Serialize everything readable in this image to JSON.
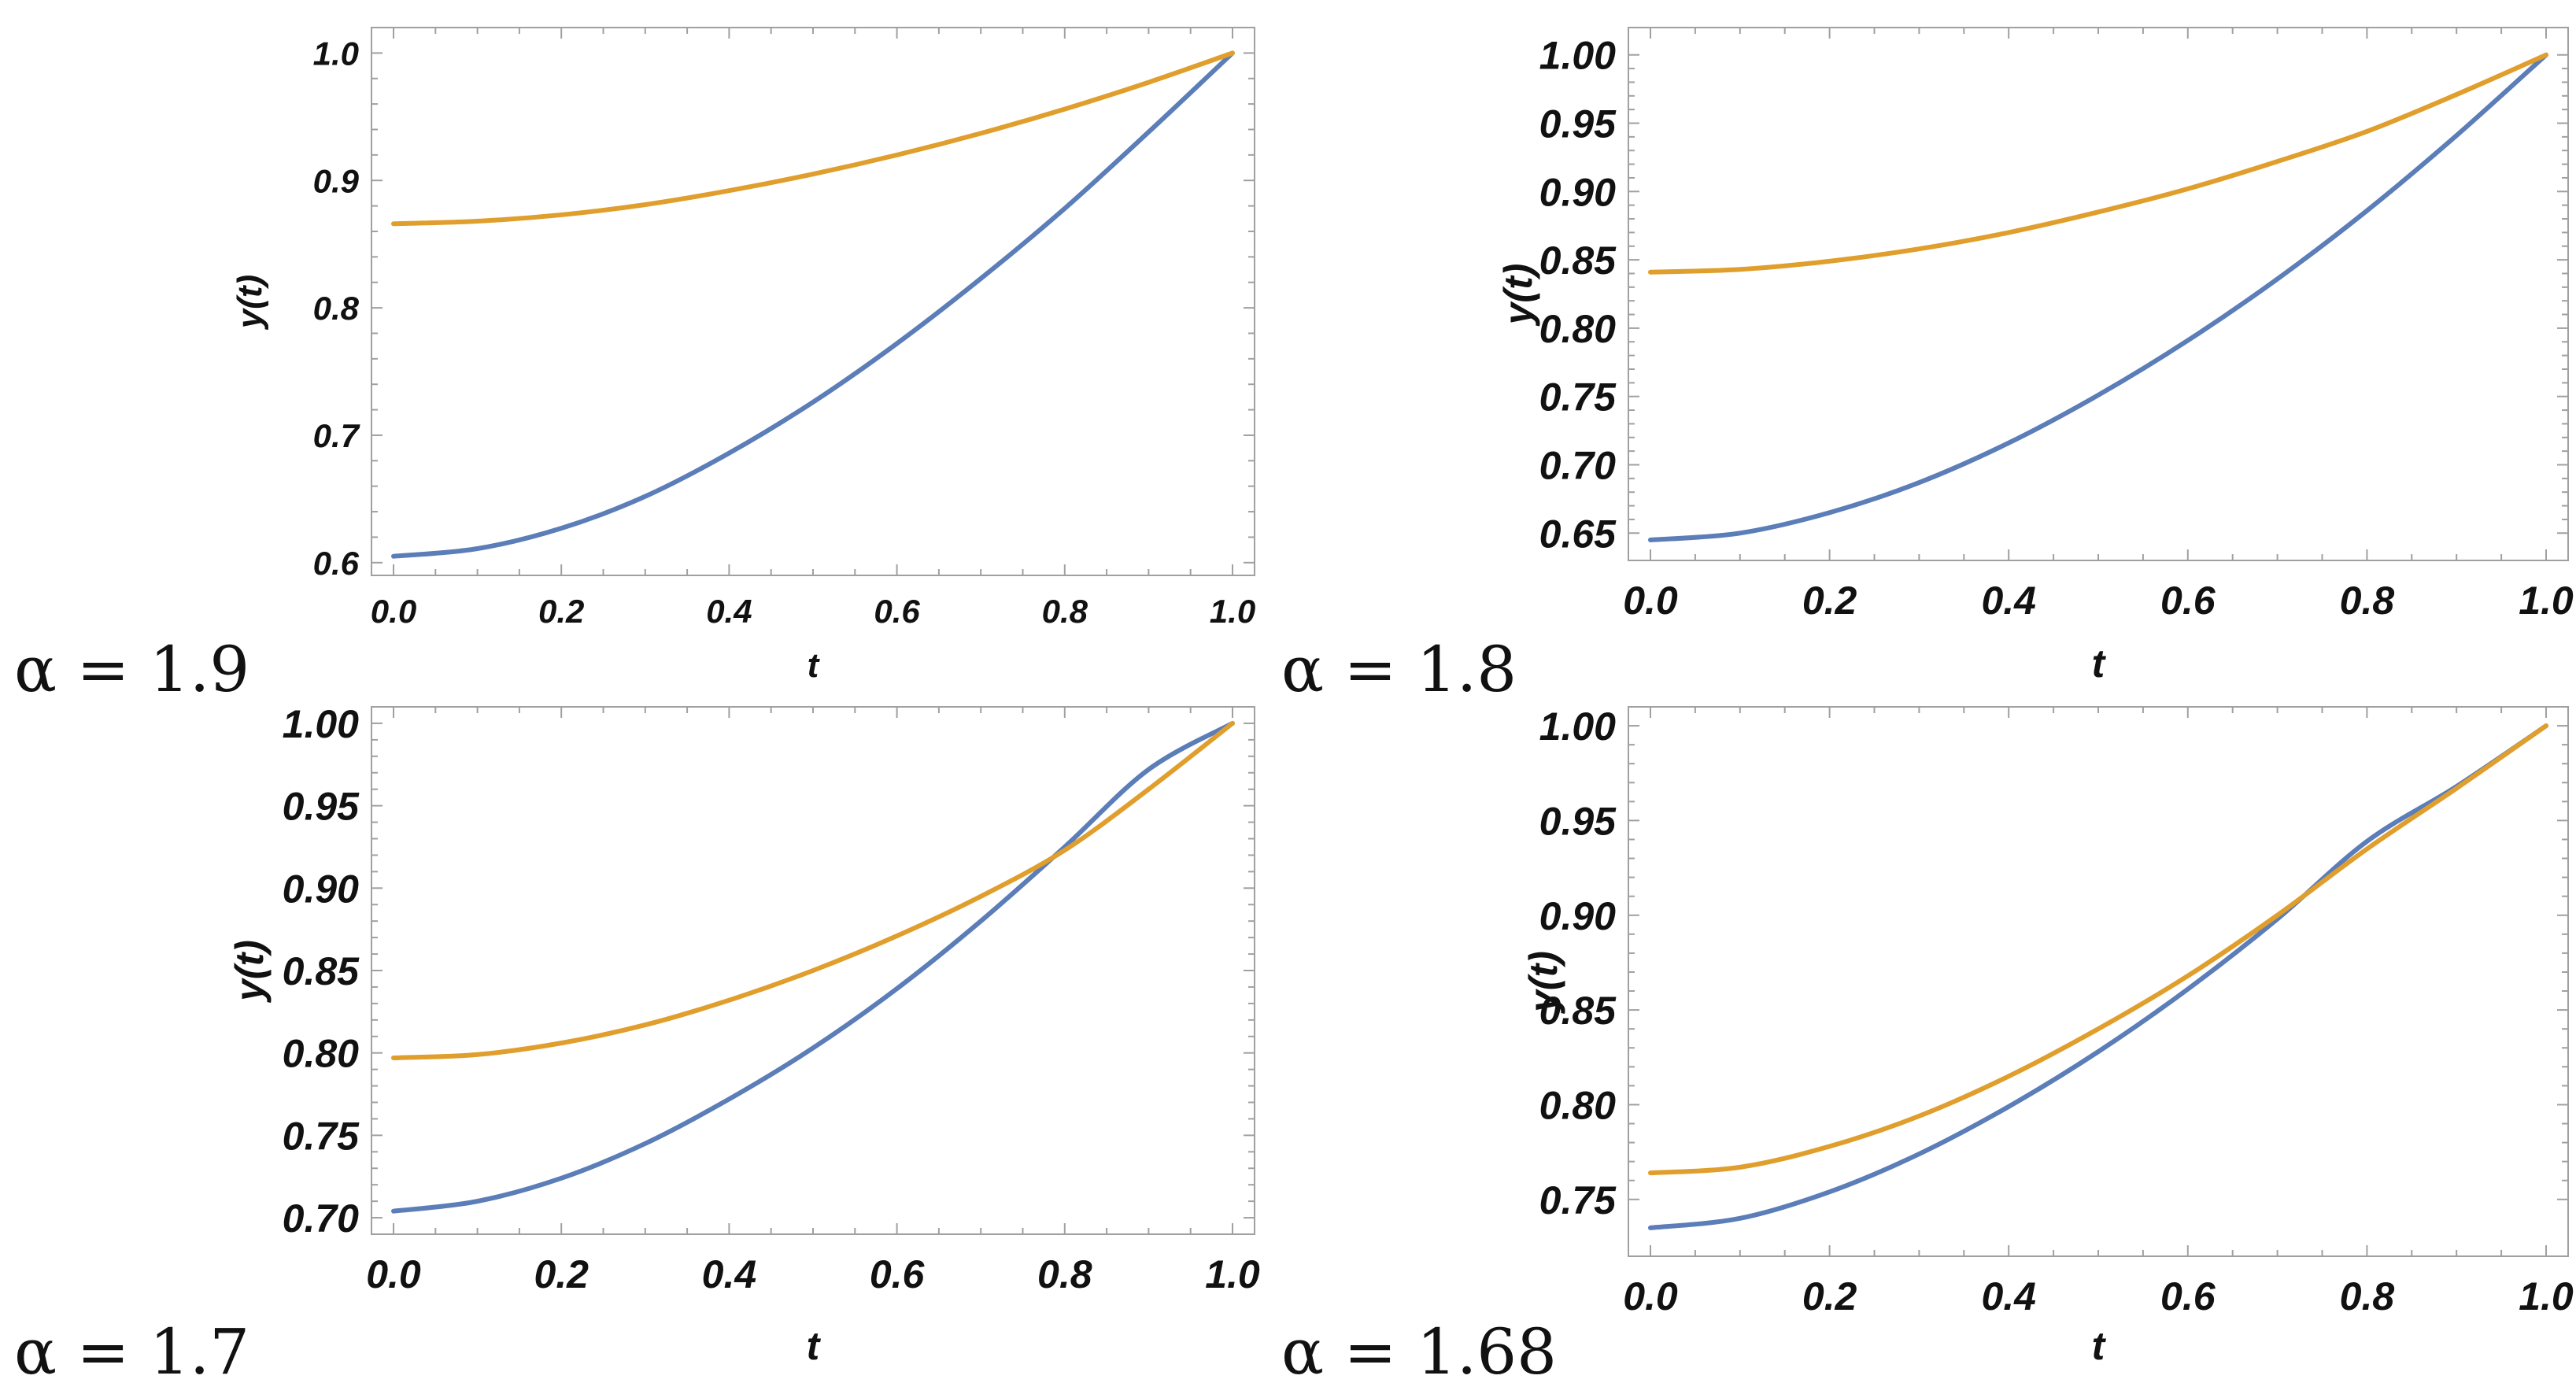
{
  "colors": {
    "series1": "#5b7db8",
    "series2": "#e09e2c"
  },
  "chart_data": [
    {
      "type": "line",
      "caption": "α = 1.9",
      "title": "",
      "xlabel": "t",
      "ylabel": "y(t)",
      "xlim": [
        0,
        1
      ],
      "ylim": [
        0.59,
        1.02
      ],
      "xticks": [
        "0.0",
        "0.2",
        "0.4",
        "0.6",
        "0.8",
        "1.0"
      ],
      "yticks": [
        "0.6",
        "0.7",
        "0.8",
        "0.9",
        "1.0"
      ],
      "x": [
        0,
        0.1,
        0.2,
        0.3,
        0.4,
        0.5,
        0.6,
        0.7,
        0.8,
        0.9,
        1.0
      ],
      "series": [
        {
          "name": "series-1",
          "color": "#5b7db8",
          "values": [
            0.605,
            0.611,
            0.627,
            0.652,
            0.686,
            0.726,
            0.772,
            0.823,
            0.878,
            0.938,
            1.0
          ]
        },
        {
          "name": "series-2",
          "color": "#e09e2c",
          "values": [
            0.866,
            0.868,
            0.873,
            0.881,
            0.892,
            0.905,
            0.92,
            0.937,
            0.956,
            0.977,
            1.0
          ]
        }
      ]
    },
    {
      "type": "line",
      "caption": "α = 1.8",
      "title": "",
      "xlabel": "t",
      "ylabel": "y(t)",
      "xlim": [
        0,
        1
      ],
      "ylim": [
        0.63,
        1.02
      ],
      "xticks": [
        "0.0",
        "0.2",
        "0.4",
        "0.6",
        "0.8",
        "1.0"
      ],
      "yticks": [
        "0.65",
        "0.70",
        "0.75",
        "0.80",
        "0.85",
        "0.90",
        "0.95",
        "1.00"
      ],
      "x": [
        0,
        0.1,
        0.2,
        0.3,
        0.4,
        0.5,
        0.6,
        0.7,
        0.8,
        0.9,
        1.0
      ],
      "series": [
        {
          "name": "series-1",
          "color": "#5b7db8",
          "values": [
            0.645,
            0.65,
            0.665,
            0.687,
            0.716,
            0.751,
            0.791,
            0.836,
            0.886,
            0.941,
            1.0
          ]
        },
        {
          "name": "series-2",
          "color": "#e09e2c",
          "values": [
            0.841,
            0.843,
            0.849,
            0.858,
            0.87,
            0.885,
            0.902,
            0.922,
            0.944,
            0.971,
            1.0
          ]
        }
      ]
    },
    {
      "type": "line",
      "caption": "α = 1.7",
      "title": "",
      "xlabel": "t",
      "ylabel": "y(t)",
      "xlim": [
        0,
        1
      ],
      "ylim": [
        0.69,
        1.01
      ],
      "xticks": [
        "0.0",
        "0.2",
        "0.4",
        "0.6",
        "0.8",
        "1.0"
      ],
      "yticks": [
        "0.70",
        "0.75",
        "0.80",
        "0.85",
        "0.90",
        "0.95",
        "1.00"
      ],
      "x": [
        0,
        0.1,
        0.2,
        0.3,
        0.4,
        0.5,
        0.6,
        0.7,
        0.8,
        0.9,
        1.0
      ],
      "series": [
        {
          "name": "series-1",
          "color": "#5b7db8",
          "values": [
            0.704,
            0.71,
            0.724,
            0.745,
            0.772,
            0.803,
            0.839,
            0.88,
            0.925,
            0.972,
            1.0
          ]
        },
        {
          "name": "series-2",
          "color": "#e09e2c",
          "values": [
            0.797,
            0.799,
            0.806,
            0.817,
            0.832,
            0.85,
            0.871,
            0.895,
            0.923,
            0.96,
            1.0
          ]
        }
      ]
    },
    {
      "type": "line",
      "caption": "α = 1.68",
      "title": "",
      "xlabel": "t",
      "ylabel": "y(t)",
      "xlim": [
        0,
        1
      ],
      "ylim": [
        0.72,
        1.01
      ],
      "xticks": [
        "0.0",
        "0.2",
        "0.4",
        "0.6",
        "0.8",
        "1.0"
      ],
      "yticks": [
        "0.75",
        "0.80",
        "0.85",
        "0.90",
        "0.95",
        "1.00"
      ],
      "x": [
        0,
        0.1,
        0.2,
        0.3,
        0.4,
        0.5,
        0.6,
        0.7,
        0.8,
        0.9,
        1.0
      ],
      "series": [
        {
          "name": "series-1",
          "color": "#5b7db8",
          "values": [
            0.735,
            0.74,
            0.754,
            0.774,
            0.799,
            0.828,
            0.861,
            0.898,
            0.939,
            0.968,
            1.0
          ]
        },
        {
          "name": "series-2",
          "color": "#e09e2c",
          "values": [
            0.764,
            0.767,
            0.778,
            0.794,
            0.815,
            0.84,
            0.868,
            0.9,
            0.935,
            0.967,
            1.0
          ]
        }
      ]
    }
  ]
}
